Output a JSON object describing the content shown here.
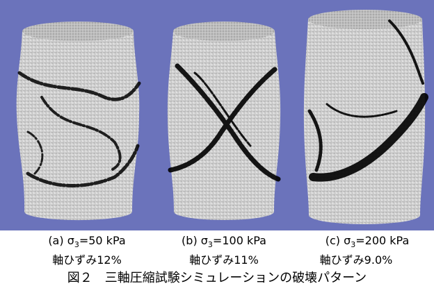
{
  "panels": [
    {
      "label_prefix": "(a) σ",
      "label_sub": "3",
      "label_suffix": "=50 kPa",
      "strain": "軸ひずみ12%"
    },
    {
      "label_prefix": "(b) σ",
      "label_sub": "3",
      "label_suffix": "=100 kPa",
      "strain": "軸ひずみ11%"
    },
    {
      "label_prefix": "(c) σ",
      "label_sub": "3",
      "label_suffix": "=200 kPa",
      "strain": "軸ひずみ9.0%"
    }
  ],
  "caption": "図２　三軸圧縮試験シミュレーションの破壊パターン"
}
